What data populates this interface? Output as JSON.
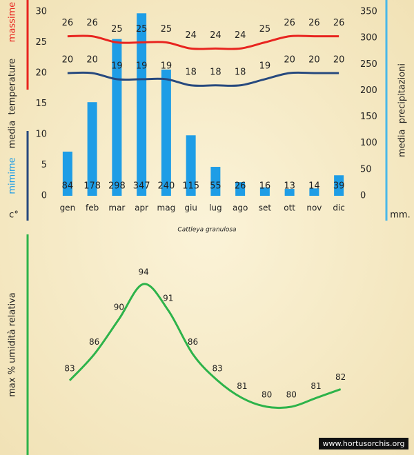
{
  "chart_data": [
    {
      "type": "bar-line",
      "title": "Cattleya granulosa",
      "ylabel": "media  temperature",
      "y_unit": "c°",
      "y2label": "media  precipitazioni",
      "y2_unit": "mm.",
      "categories": [
        "gen",
        "feb",
        "mar",
        "apr",
        "mag",
        "giu",
        "lug",
        "ago",
        "set",
        "ott",
        "nov",
        "dic"
      ],
      "ylim": [
        0,
        30
      ],
      "yticks": [
        0,
        5,
        10,
        15,
        20,
        25,
        30
      ],
      "y2lim": [
        0,
        350
      ],
      "y2ticks": [
        0,
        50,
        100,
        150,
        200,
        250,
        300,
        350
      ],
      "series": [
        {
          "type": "bar",
          "axis": "y2",
          "color": "#1e9de6",
          "values": [
            84,
            178,
            298,
            347,
            240,
            115,
            55,
            26,
            16,
            13,
            14,
            39
          ]
        },
        {
          "type": "line",
          "name": "massime",
          "color": "#e8241f",
          "values": [
            26,
            26,
            25,
            25,
            25,
            24,
            24,
            24,
            25,
            26,
            26,
            26
          ]
        },
        {
          "type": "line",
          "name": "mimime",
          "color": "#27497e",
          "label_color": "#1e9de6",
          "values": [
            20,
            20,
            19,
            19,
            19,
            18,
            18,
            18,
            19,
            20,
            20,
            20
          ]
        }
      ]
    },
    {
      "type": "line",
      "ylabel": "max % umidità relativa",
      "color": "#2db34a",
      "values": [
        83,
        86,
        90,
        94,
        91,
        86,
        83,
        81,
        80,
        80,
        81,
        82
      ]
    }
  ],
  "watermark": "www.hortusorchis.org"
}
